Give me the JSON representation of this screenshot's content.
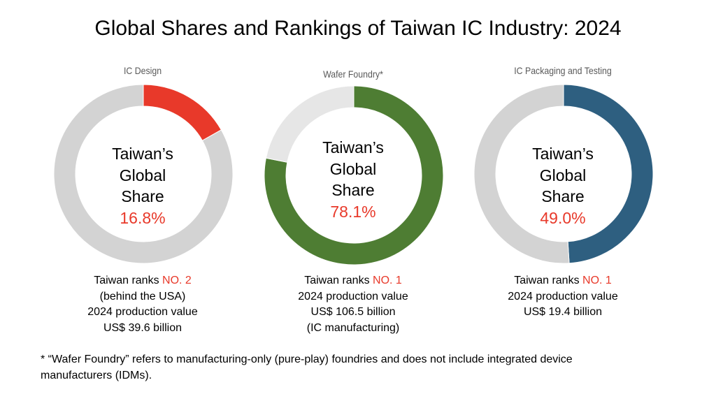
{
  "title": "Global Shares and Rankings of Taiwan IC Industry: 2024",
  "chart_data": [
    {
      "type": "pie",
      "variant": "donut",
      "title": "IC Design",
      "center_label": "Taiwan’s Global Share",
      "slices": [
        {
          "label": "Taiwan",
          "value": 16.8,
          "color": "#e8392a"
        },
        {
          "label": "Rest",
          "value": 83.2,
          "color": "#d3d3d3"
        }
      ],
      "value_label": "16.8%",
      "rank_prefix": "Taiwan ranks ",
      "rank": "NO. 2",
      "notes": [
        "(behind the USA)",
        "2024 production value",
        "US$ 39.6 billion"
      ]
    },
    {
      "type": "pie",
      "variant": "donut",
      "title": "Wafer Foundry*",
      "center_label": "Taiwan’s Global Share",
      "slices": [
        {
          "label": "Taiwan",
          "value": 78.1,
          "color": "#4e7d33"
        },
        {
          "label": "Rest",
          "value": 21.9,
          "color": "#e6e6e6"
        }
      ],
      "value_label": "78.1%",
      "rank_prefix": "Taiwan ranks ",
      "rank": "NO. 1",
      "notes": [
        "2024 production value",
        "US$ 106.5 billion",
        "(IC manufacturing)"
      ]
    },
    {
      "type": "pie",
      "variant": "donut",
      "title": "IC Packaging and Testing",
      "center_label": "Taiwan’s Global Share",
      "slices": [
        {
          "label": "Taiwan",
          "value": 49.0,
          "color": "#2e5f80"
        },
        {
          "label": "Rest",
          "value": 51.0,
          "color": "#d3d3d3"
        }
      ],
      "value_label": "49.0%",
      "rank_prefix": "Taiwan ranks ",
      "rank": "NO. 1",
      "notes": [
        "2024 production value",
        "US$ 19.4 billion"
      ]
    }
  ],
  "center_lines": [
    "Taiwan’s",
    "Global",
    "Share"
  ],
  "footnote_lines": [
    "* “Wafer Foundry” refers to manufacturing-only (pure-play) foundries and does not include integrated device",
    "manufacturers (IDMs)."
  ]
}
